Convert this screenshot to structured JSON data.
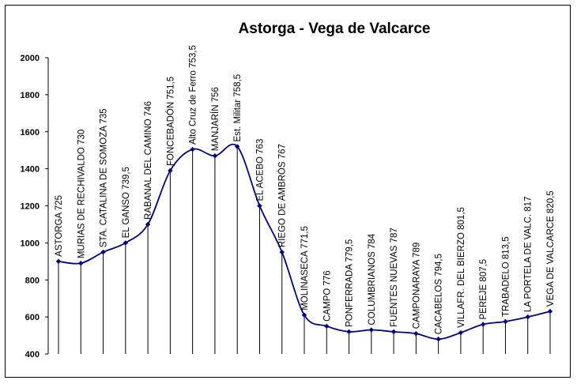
{
  "chart_data": {
    "type": "line",
    "title": "Astorga - Vega de Valcarce",
    "xlabel": "",
    "ylabel": "",
    "ylim": [
      400,
      2000
    ],
    "yticks": [
      400,
      600,
      800,
      1000,
      1200,
      1400,
      1600,
      1800,
      2000
    ],
    "grid": false,
    "legend": "none",
    "line_color": "#000080",
    "categories": [
      "ASTORGA 725",
      "MURIAS DE RECHIVALDO 730",
      "STA. CATALINA DE SOMOZA 735",
      "EL GANSO 739,5",
      "RABANAL DEL CAMINO 746",
      "FONCEBADÓN 751,5",
      "Alto Cruz de Ferro 753,5",
      "MANJARÍN 756",
      "Est. Militar 758,5",
      "EL ACEBO  763",
      "RIEGO DE AMBRÓS  767",
      "MOLINASECA  771,5",
      "CAMPO  776",
      "PONFERRADA  779,5",
      "COLUMBRIANOS  784",
      "FUENTES NUEVAS  787",
      "CAMPONARAYA  789",
      "CACABELOS  794,5",
      "VILLAFR. DEL BIERZO  801,5",
      "PEREJE  807,5",
      "TRABADELO  813,5",
      "LA PORTELA DE VALC. 817",
      "VEGA DE VALCARCE 820,5"
    ],
    "series": [
      {
        "values": [
          900,
          890,
          950,
          1000,
          1100,
          1390,
          1505,
          1470,
          1520,
          1200,
          950,
          610,
          550,
          520,
          530,
          520,
          510,
          480,
          515,
          560,
          575,
          600,
          630
        ]
      }
    ]
  }
}
